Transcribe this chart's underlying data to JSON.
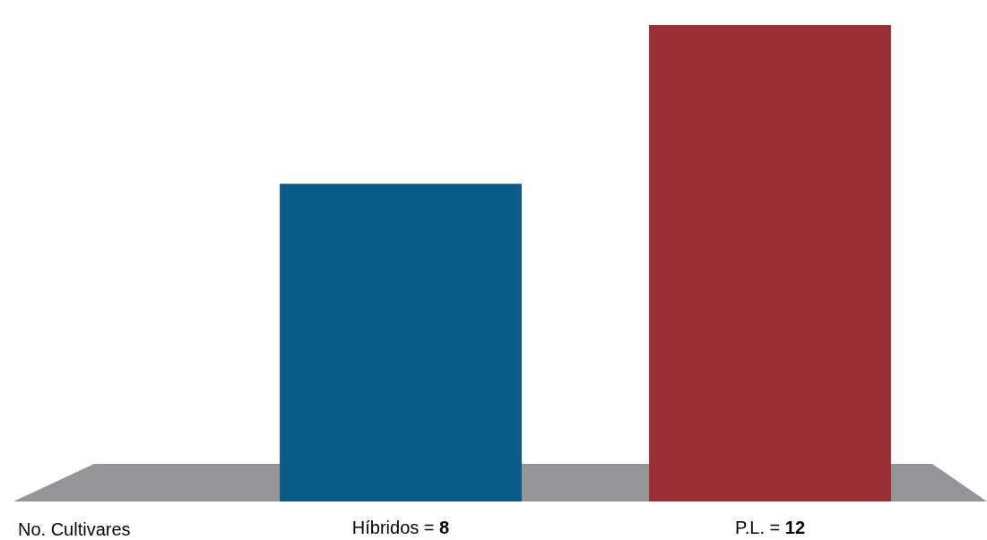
{
  "chart_data": {
    "type": "bar",
    "xlabel": "No. Cultivares",
    "categories": [
      "Híbridos =",
      "P.L. ="
    ],
    "values": [
      8,
      12
    ],
    "data_labels": true,
    "colors": [
      "#0a5a8a",
      "#9b2f35"
    ]
  }
}
